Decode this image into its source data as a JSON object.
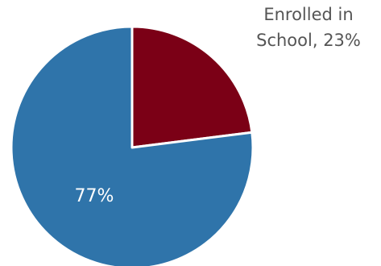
{
  "chart_data": {
    "type": "pie",
    "slices": [
      {
        "label": "Enrolled in School",
        "value": 23,
        "display": "23%",
        "color": "#7b0016"
      },
      {
        "label": "",
        "value": 77,
        "display": "77%",
        "color": "#2f74aa"
      }
    ],
    "legend": "none"
  },
  "annotations": {
    "enrolled_line1": "Enrolled in",
    "enrolled_line2": "School, 23%",
    "other_label": "77%"
  },
  "colors": {
    "inside_label_text": "#ffffff",
    "outside_label_text": "#555555",
    "separator": "#ffffff"
  }
}
